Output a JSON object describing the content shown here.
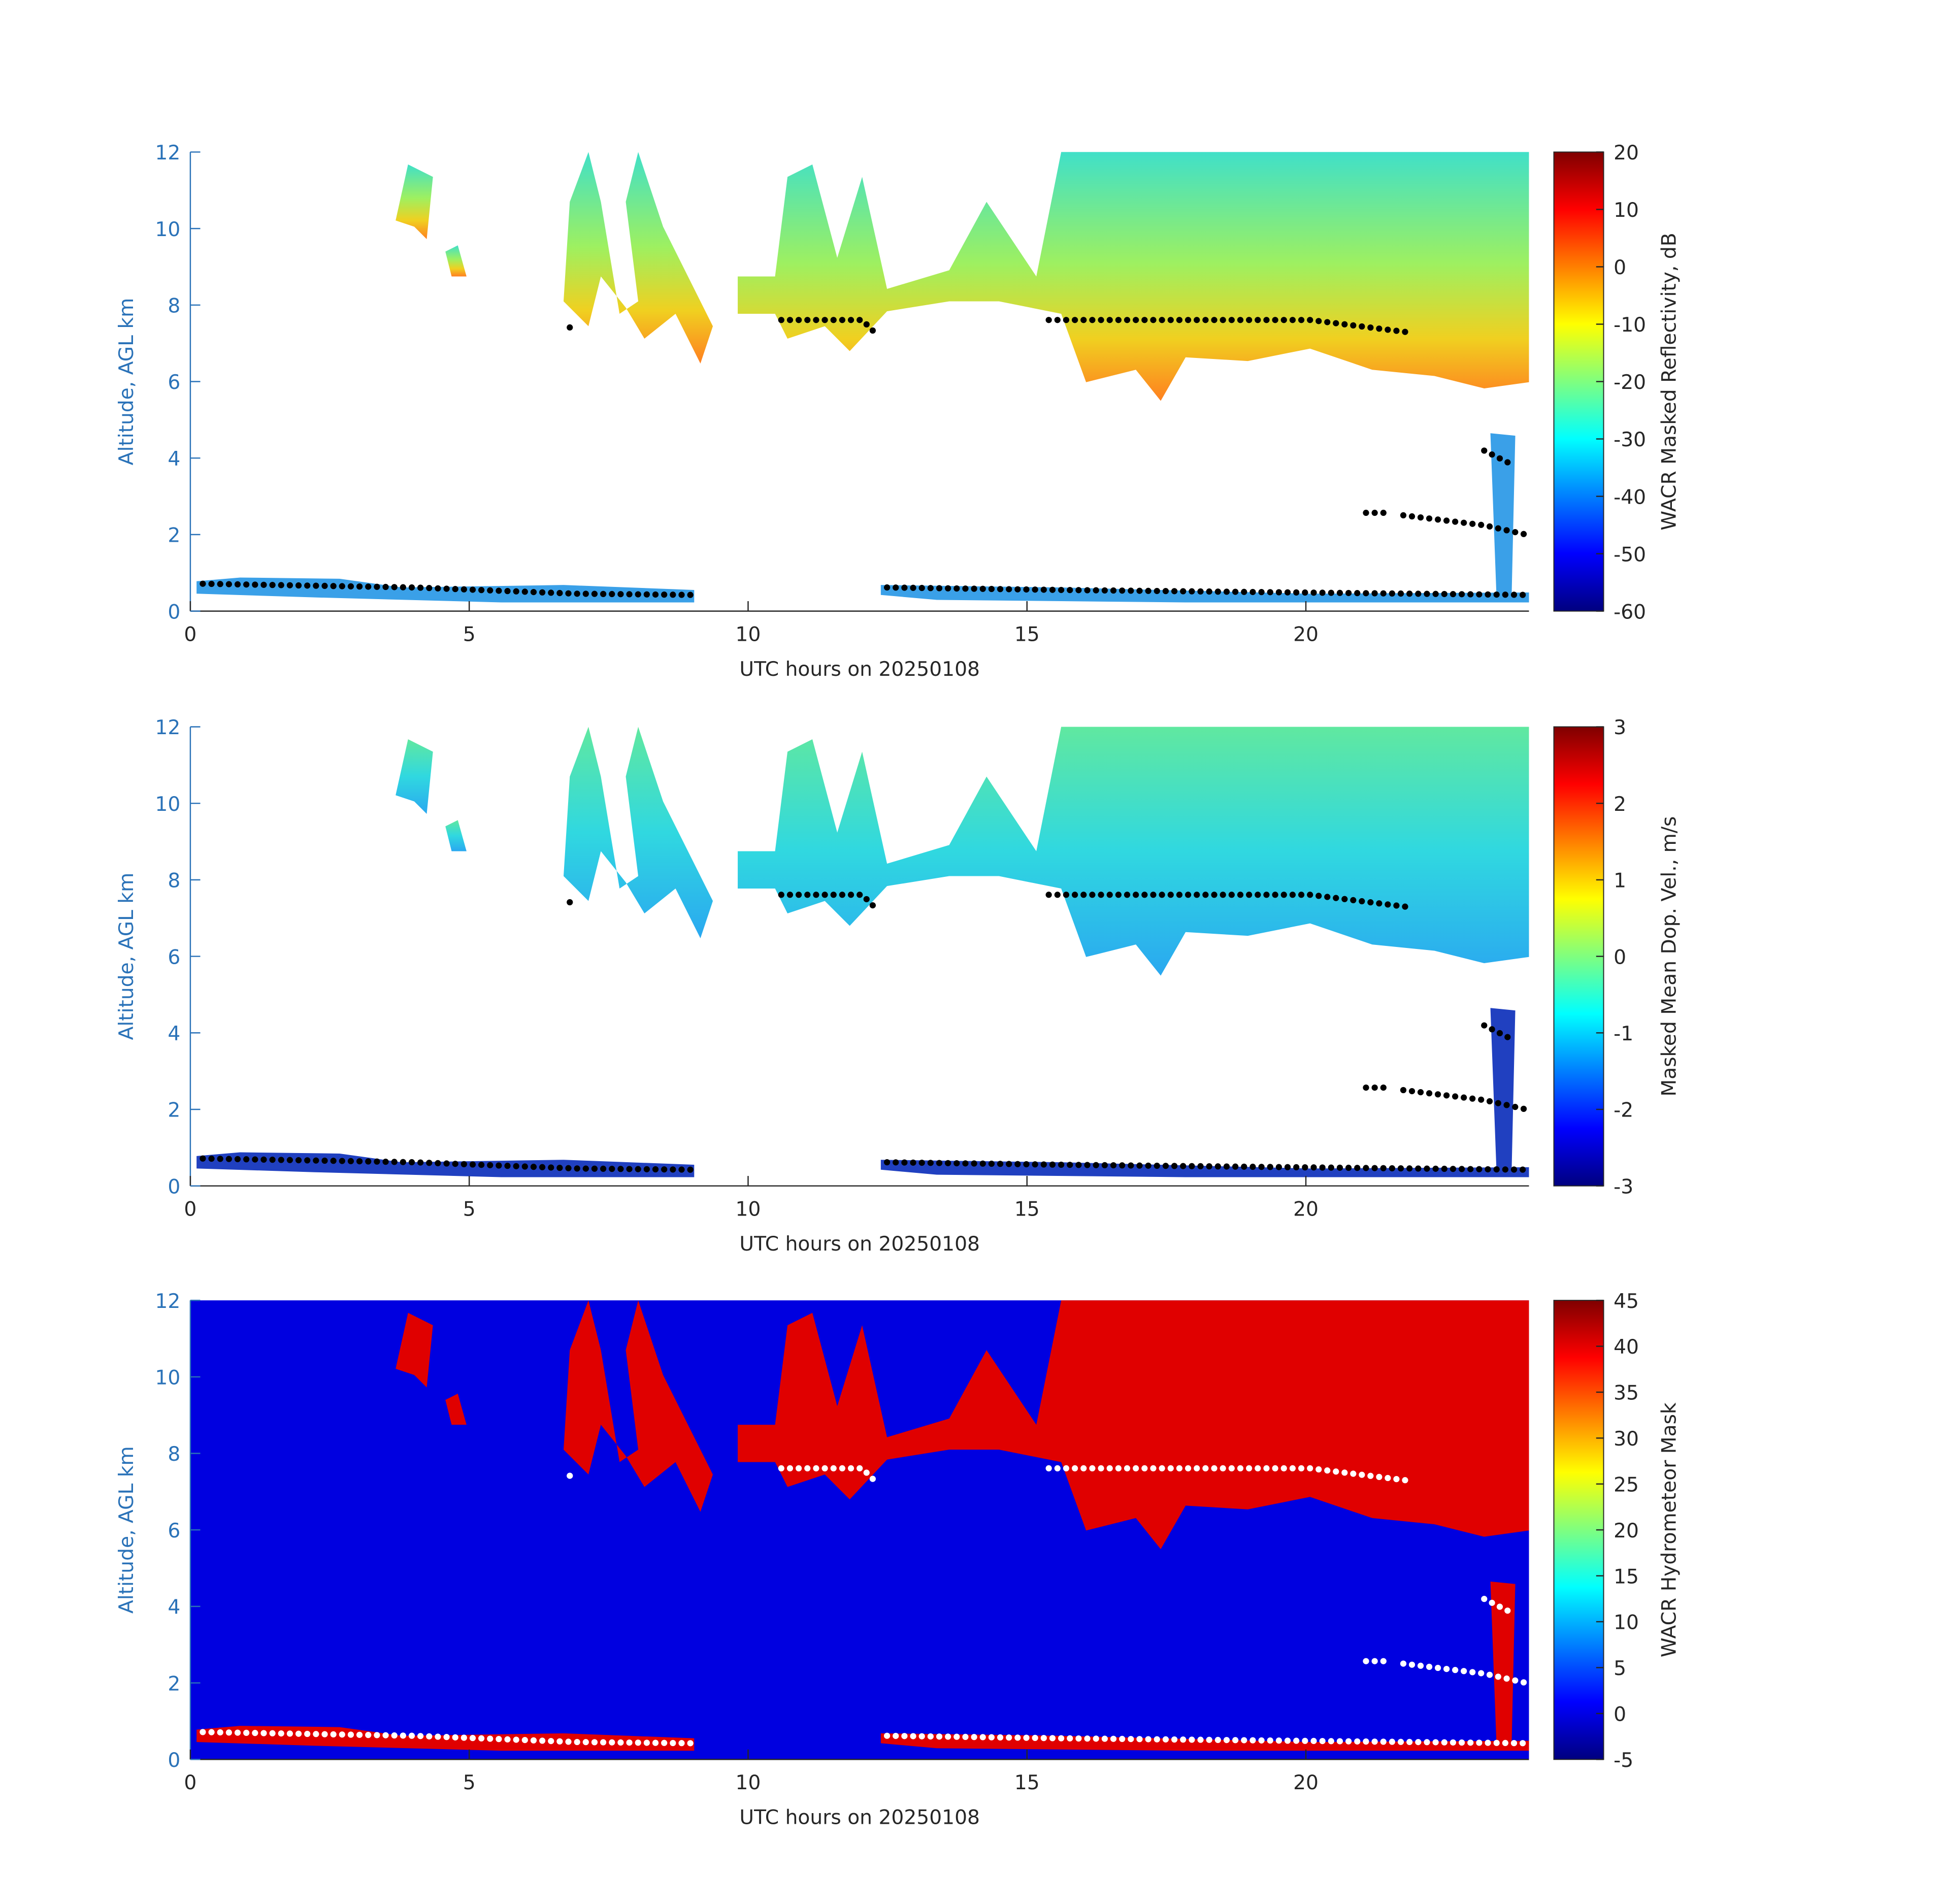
{
  "chart_data": [
    {
      "type": "heatmap",
      "xlabel": "UTC hours on 20250108",
      "ylabel": "Altitude, AGL km",
      "xlim": [
        0,
        24
      ],
      "xticks": [
        0,
        5,
        10,
        15,
        20
      ],
      "ylim": [
        0,
        12
      ],
      "yticks": [
        0,
        2,
        4,
        6,
        8,
        10,
        12
      ],
      "colorbar": {
        "label": "WACR Masked Reflectivity, dB",
        "colormap": "jet",
        "lim": [
          -60,
          20
        ],
        "ticks": [
          -60,
          -50,
          -40,
          -30,
          -20,
          -10,
          0,
          10,
          20
        ]
      }
    },
    {
      "type": "heatmap",
      "xlabel": "UTC hours on 20250108",
      "ylabel": "Altitude, AGL km",
      "xlim": [
        0,
        24
      ],
      "xticks": [
        0,
        5,
        10,
        15,
        20
      ],
      "ylim": [
        0,
        12
      ],
      "yticks": [
        0,
        2,
        4,
        6,
        8,
        10,
        12
      ],
      "colorbar": {
        "label": "Masked Mean Dop. Vel., m/s",
        "colormap": "jet",
        "lim": [
          -3,
          3
        ],
        "ticks": [
          -3,
          -2,
          -1,
          0,
          1,
          2,
          3
        ]
      }
    },
    {
      "type": "heatmap",
      "xlabel": "UTC hours on 20250108",
      "ylabel": "Altitude, AGL km",
      "xlim": [
        0,
        24
      ],
      "xticks": [
        0,
        5,
        10,
        15,
        20
      ],
      "ylim": [
        0,
        12
      ],
      "yticks": [
        0,
        2,
        4,
        6,
        8,
        10,
        12
      ],
      "colorbar": {
        "label": "WACR Hydrometeor Mask",
        "colormap": "jet",
        "lim": [
          -5,
          45
        ],
        "ticks": [
          -5,
          0,
          5,
          10,
          15,
          20,
          25,
          30,
          35,
          40,
          45
        ]
      }
    }
  ]
}
